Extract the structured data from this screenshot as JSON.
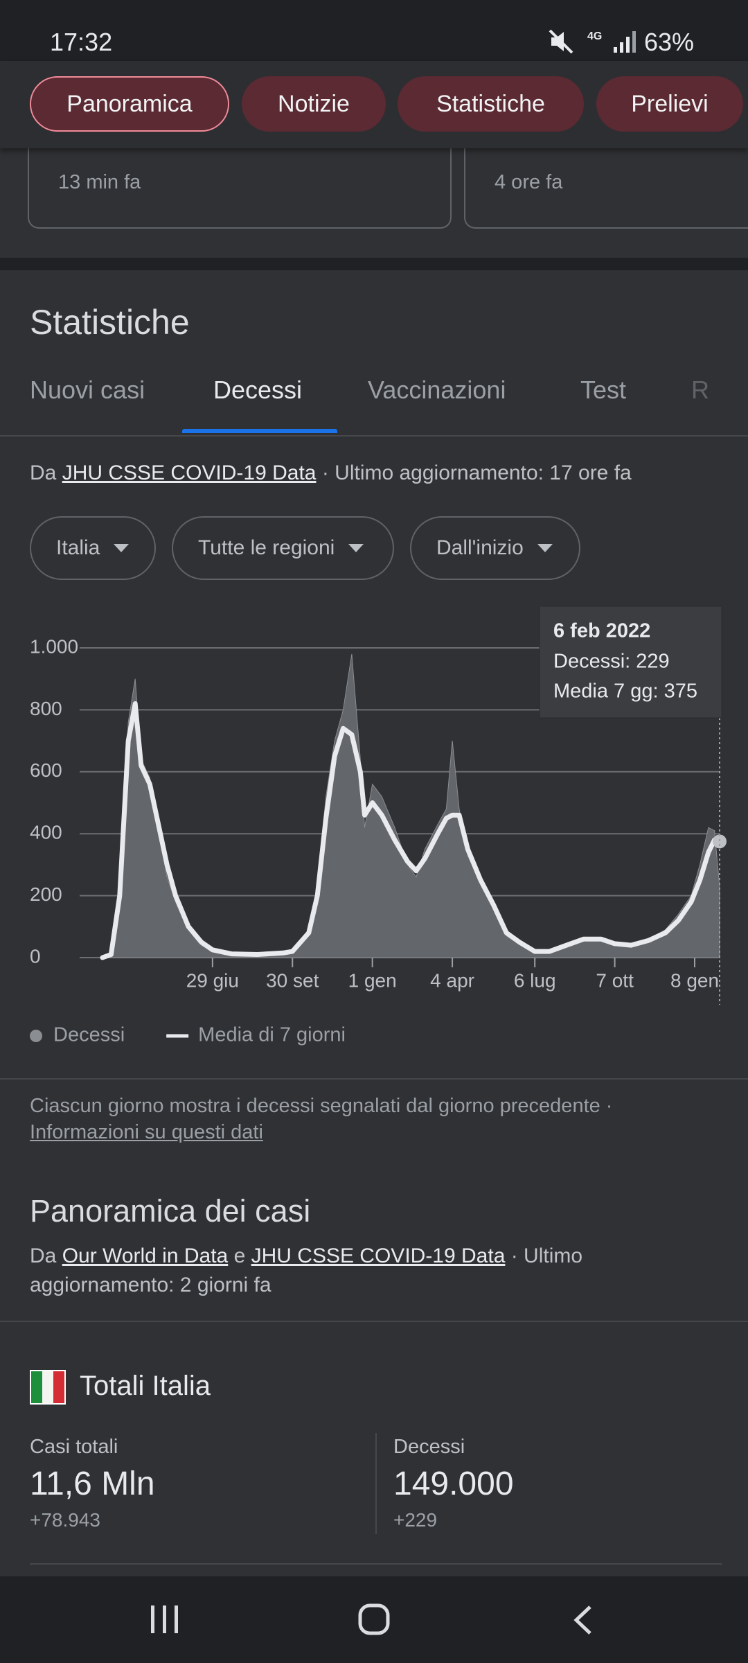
{
  "status_bar": {
    "time": "17:32",
    "network": "4G",
    "battery": "63%"
  },
  "chips": [
    "Panoramica",
    "Notizie",
    "Statistiche",
    "Prelievi"
  ],
  "cards": [
    {
      "time": "13 min fa"
    },
    {
      "time": "4 ore fa"
    }
  ],
  "section_title": "Statistiche",
  "tabs": [
    "Nuovi casi",
    "Decessi",
    "Vaccinazioni",
    "Test",
    "R"
  ],
  "source": {
    "prefix": "Da",
    "link": "JHU CSSE COVID-19 Data",
    "suffix": "· Ultimo aggiornamento: 17 ore fa"
  },
  "filters": [
    "Italia",
    "Tutte le regioni",
    "Dall'inizio"
  ],
  "chart_data": {
    "type": "line",
    "x": [
      0,
      10,
      20,
      30,
      38,
      45,
      55,
      65,
      75,
      85,
      100,
      115,
      128,
      150,
      180,
      210,
      221,
      240,
      250,
      260,
      270,
      280,
      290,
      300,
      305,
      314,
      325,
      340,
      355,
      365,
      375,
      390,
      400,
      407,
      415,
      425,
      440,
      455,
      470,
      485,
      503,
      520,
      540,
      560,
      580,
      596,
      615,
      635,
      655,
      670,
      685,
      695,
      705,
      712,
      718
    ],
    "xlim": [
      0,
      718
    ],
    "xticks": [
      {
        "value": 128,
        "label": "29 giu"
      },
      {
        "value": 221,
        "label": "30 set"
      },
      {
        "value": 314,
        "label": "1 gen"
      },
      {
        "value": 407,
        "label": "4 apr"
      },
      {
        "value": 503,
        "label": "6 lug"
      },
      {
        "value": 596,
        "label": "7 ott"
      },
      {
        "value": 689,
        "label": "8 gen"
      }
    ],
    "ylim": [
      0,
      1000
    ],
    "yticks": [
      0,
      200,
      400,
      600,
      800,
      {
        "value": 1000,
        "label": "1.000"
      }
    ],
    "grid": true,
    "series": [
      {
        "name": "Decessi",
        "kind": "area",
        "color": "#63666b",
        "values": [
          0,
          12,
          180,
          760,
          900,
          640,
          580,
          420,
          260,
          180,
          90,
          40,
          20,
          10,
          8,
          18,
          22,
          90,
          230,
          520,
          700,
          800,
          980,
          640,
          420,
          560,
          520,
          420,
          300,
          260,
          350,
          430,
          480,
          700,
          480,
          330,
          240,
          180,
          70,
          45,
          15,
          25,
          45,
          55,
          65,
          40,
          35,
          60,
          90,
          140,
          200,
          300,
          420,
          410,
          229
        ]
      },
      {
        "name": "Media di 7 giorni",
        "kind": "line",
        "color": "#e8eaed",
        "values": [
          0,
          10,
          200,
          700,
          820,
          620,
          560,
          430,
          300,
          200,
          100,
          50,
          25,
          12,
          10,
          15,
          20,
          80,
          200,
          450,
          650,
          740,
          720,
          600,
          460,
          500,
          460,
          380,
          310,
          280,
          320,
          400,
          450,
          460,
          460,
          350,
          250,
          170,
          80,
          50,
          20,
          20,
          40,
          60,
          60,
          45,
          40,
          55,
          80,
          120,
          180,
          250,
          340,
          380,
          375
        ]
      }
    ],
    "tooltip": {
      "title": "6 feb 2022",
      "lines": [
        "Decessi: 229",
        "Media 7 gg: 375"
      ]
    }
  },
  "note": {
    "text": "Ciascun giorno mostra i decessi segnalati dal giorno precedente ·",
    "link": "Informazioni su questi dati"
  },
  "overview": {
    "title": "Panoramica dei casi",
    "source": {
      "prefix": "Da",
      "link1": "Our World in Data",
      "middle": "e",
      "link2": "JHU CSSE COVID-19 Data",
      "suffix": "· Ultimo aggiornamento: 2 giorni fa"
    }
  },
  "totals": {
    "title": "Totali Italia",
    "stats": [
      {
        "label": "Casi totali",
        "value": "11,6 Mln",
        "change": "+78.943"
      },
      {
        "label": "Decessi",
        "value": "149.000",
        "change": "+229"
      }
    ]
  }
}
